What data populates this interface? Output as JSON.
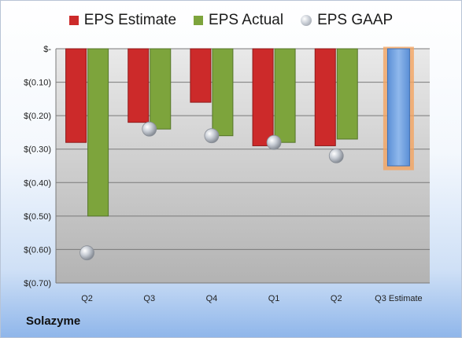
{
  "chart_data": {
    "type": "bar",
    "title": "",
    "company": "Solazyme",
    "legend": [
      {
        "label": "EPS Estimate",
        "color": "#cc2a2a",
        "marker": "square"
      },
      {
        "label": "EPS Actual",
        "color": "#7da43c",
        "marker": "square"
      },
      {
        "label": "EPS GAAP",
        "color": "#b9bec7",
        "marker": "bubble"
      }
    ],
    "categories": [
      "Q2",
      "Q3",
      "Q4",
      "Q1",
      "Q2",
      "Q3 Estimate"
    ],
    "series": [
      {
        "name": "EPS Estimate",
        "values": [
          -0.28,
          -0.22,
          -0.16,
          -0.29,
          -0.29,
          null
        ]
      },
      {
        "name": "EPS Actual",
        "values": [
          -0.5,
          -0.24,
          -0.26,
          -0.28,
          -0.27,
          null
        ]
      },
      {
        "name": "EPS GAAP",
        "values": [
          -0.61,
          -0.24,
          -0.26,
          -0.28,
          -0.32,
          null
        ]
      },
      {
        "name": "Q3 Estimate",
        "values": [
          null,
          null,
          null,
          null,
          null,
          -0.35
        ]
      }
    ],
    "ytick_labels": [
      "$-",
      "$(0.10)",
      "$(0.20)",
      "$(0.30)",
      "$(0.40)",
      "$(0.50)",
      "$(0.60)",
      "$(0.70)"
    ],
    "ylim": [
      -0.7,
      0
    ],
    "grid": true,
    "legend_position": "top",
    "colors": {
      "estimate": "#cc2a2a",
      "actual": "#7da43c",
      "gaap": "#b9bec7",
      "forecast": "#6f9fdc",
      "forecast_glow": "#f4a460"
    }
  }
}
